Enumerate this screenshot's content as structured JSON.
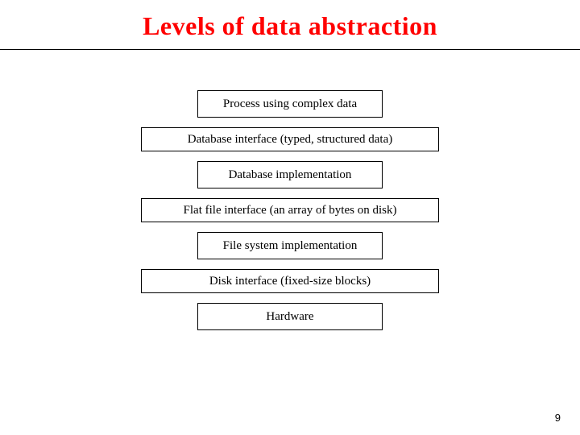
{
  "title": {
    "text": "Levels of data abstraction",
    "color": "#ff0000",
    "fontsize": 32
  },
  "divider_color": "#000000",
  "boxes": [
    {
      "label": "Process using complex data",
      "variant": "narrow"
    },
    {
      "label": "Database interface (typed, structured data)",
      "variant": "wide"
    },
    {
      "label": "Database implementation",
      "variant": "narrow"
    },
    {
      "label": "Flat file interface (an array of bytes on disk)",
      "variant": "wide"
    },
    {
      "label": "File system implementation",
      "variant": "narrow"
    },
    {
      "label": "Disk interface (fixed-size blocks)",
      "variant": "wide"
    },
    {
      "label": "Hardware",
      "variant": "narrow"
    }
  ],
  "box_style": {
    "narrow_width": 230,
    "wide_width": 370,
    "narrow_height": 34,
    "wide_height": 30,
    "border_color": "#000000",
    "background_color": "#ffffff",
    "font_size": 15,
    "gap": 12
  },
  "page_number": "9",
  "page_bg": "#ffffff"
}
